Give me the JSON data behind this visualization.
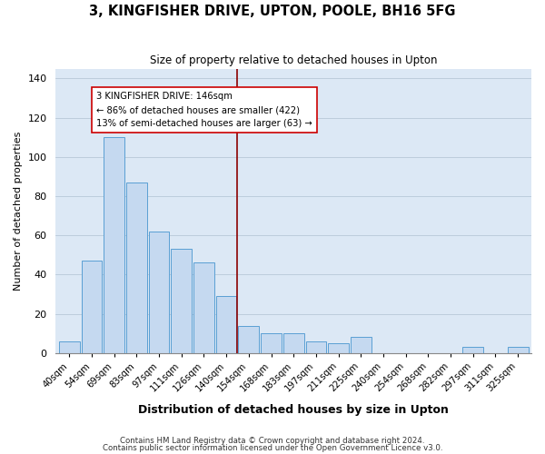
{
  "title": "3, KINGFISHER DRIVE, UPTON, POOLE, BH16 5FG",
  "subtitle": "Size of property relative to detached houses in Upton",
  "xlabel": "Distribution of detached houses by size in Upton",
  "ylabel": "Number of detached properties",
  "bar_labels": [
    "40sqm",
    "54sqm",
    "69sqm",
    "83sqm",
    "97sqm",
    "111sqm",
    "126sqm",
    "140sqm",
    "154sqm",
    "168sqm",
    "183sqm",
    "197sqm",
    "211sqm",
    "225sqm",
    "240sqm",
    "254sqm",
    "268sqm",
    "282sqm",
    "297sqm",
    "311sqm",
    "325sqm"
  ],
  "bar_heights": [
    6,
    47,
    110,
    87,
    62,
    53,
    46,
    29,
    14,
    10,
    10,
    6,
    5,
    8,
    0,
    0,
    0,
    0,
    3,
    0,
    3
  ],
  "bar_color": "#c5d9f0",
  "bar_edge_color": "#5a9fd4",
  "vline_color": "#8b0000",
  "annotation_text": "3 KINGFISHER DRIVE: 146sqm\n← 86% of detached houses are smaller (422)\n13% of semi-detached houses are larger (63) →",
  "annotation_box_edgecolor": "#cc0000",
  "annotation_box_facecolor": "#ffffff",
  "ylim": [
    0,
    145
  ],
  "footnote1": "Contains HM Land Registry data © Crown copyright and database right 2024.",
  "footnote2": "Contains public sector information licensed under the Open Government Licence v3.0.",
  "plot_bg_color": "#dce8f5",
  "fig_bg_color": "#ffffff",
  "fig_width": 6.0,
  "fig_height": 5.0
}
